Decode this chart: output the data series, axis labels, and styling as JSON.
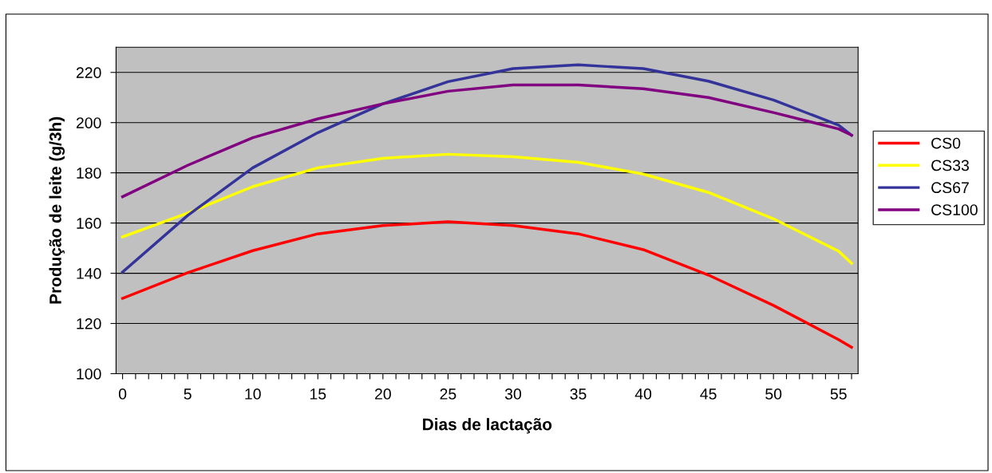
{
  "chart_data": {
    "type": "line",
    "xlabel": "Dias de lactação",
    "ylabel": "Produção de leite (g/3h)",
    "x": [
      0,
      5,
      10,
      15,
      20,
      25,
      30,
      35,
      40,
      45,
      50,
      55,
      56
    ],
    "series": [
      {
        "name": "CS0",
        "color": "#ff0000",
        "values": [
          130,
          140.2,
          149,
          155.7,
          159,
          160.5,
          159,
          155.7,
          149.4,
          139.3,
          127.2,
          113.6,
          110.5
        ]
      },
      {
        "name": "CS33",
        "color": "#ffff00",
        "values": [
          154.5,
          164,
          174.5,
          182,
          185.8,
          187.4,
          186.4,
          184.2,
          179.5,
          172.2,
          161.7,
          148.8,
          144
        ]
      },
      {
        "name": "CS67",
        "color": "#333399",
        "values": [
          140.5,
          163,
          182,
          196,
          207.5,
          216.3,
          221.5,
          223,
          221.5,
          216.5,
          209,
          199,
          195
        ]
      },
      {
        "name": "CS100",
        "color": "#800080",
        "values": [
          170.5,
          183,
          194,
          201.5,
          207.5,
          212.5,
          215,
          215,
          213.5,
          210,
          204,
          197.5,
          195
        ]
      }
    ],
    "xlim": [
      -0.5,
      56.5
    ],
    "xticks": [
      0,
      {
        "value": 1,
        "label": null
      },
      {
        "value": 2,
        "label": null
      },
      {
        "value": 3,
        "label": null
      },
      {
        "value": 4,
        "label": null
      },
      5,
      {
        "value": 6,
        "label": null
      },
      {
        "value": 7,
        "label": null
      },
      {
        "value": 8,
        "label": null
      },
      {
        "value": 9,
        "label": null
      },
      10,
      {
        "value": 11,
        "label": null
      },
      {
        "value": 12,
        "label": null
      },
      {
        "value": 13,
        "label": null
      },
      {
        "value": 14,
        "label": null
      },
      15,
      {
        "value": 16,
        "label": null
      },
      {
        "value": 17,
        "label": null
      },
      {
        "value": 18,
        "label": null
      },
      {
        "value": 19,
        "label": null
      },
      20,
      {
        "value": 21,
        "label": null
      },
      {
        "value": 22,
        "label": null
      },
      {
        "value": 23,
        "label": null
      },
      {
        "value": 24,
        "label": null
      },
      25,
      {
        "value": 26,
        "label": null
      },
      {
        "value": 27,
        "label": null
      },
      {
        "value": 28,
        "label": null
      },
      {
        "value": 29,
        "label": null
      },
      30,
      {
        "value": 31,
        "label": null
      },
      {
        "value": 32,
        "label": null
      },
      {
        "value": 33,
        "label": null
      },
      {
        "value": 34,
        "label": null
      },
      35,
      {
        "value": 36,
        "label": null
      },
      {
        "value": 37,
        "label": null
      },
      {
        "value": 38,
        "label": null
      },
      {
        "value": 39,
        "label": null
      },
      40,
      {
        "value": 41,
        "label": null
      },
      {
        "value": 42,
        "label": null
      },
      {
        "value": 43,
        "label": null
      },
      {
        "value": 44,
        "label": null
      },
      45,
      {
        "value": 46,
        "label": null
      },
      {
        "value": 47,
        "label": null
      },
      {
        "value": 48,
        "label": null
      },
      {
        "value": 49,
        "label": null
      },
      50,
      {
        "value": 51,
        "label": null
      },
      {
        "value": 52,
        "label": null
      },
      {
        "value": 53,
        "label": null
      },
      {
        "value": 54,
        "label": null
      },
      55,
      {
        "value": 56,
        "label": null
      }
    ],
    "ylim": [
      100,
      230
    ],
    "yticks": [
      100,
      120,
      140,
      160,
      180,
      200,
      220
    ],
    "grid": "y",
    "legend": "right",
    "marker": "none",
    "line_style": "solid"
  }
}
